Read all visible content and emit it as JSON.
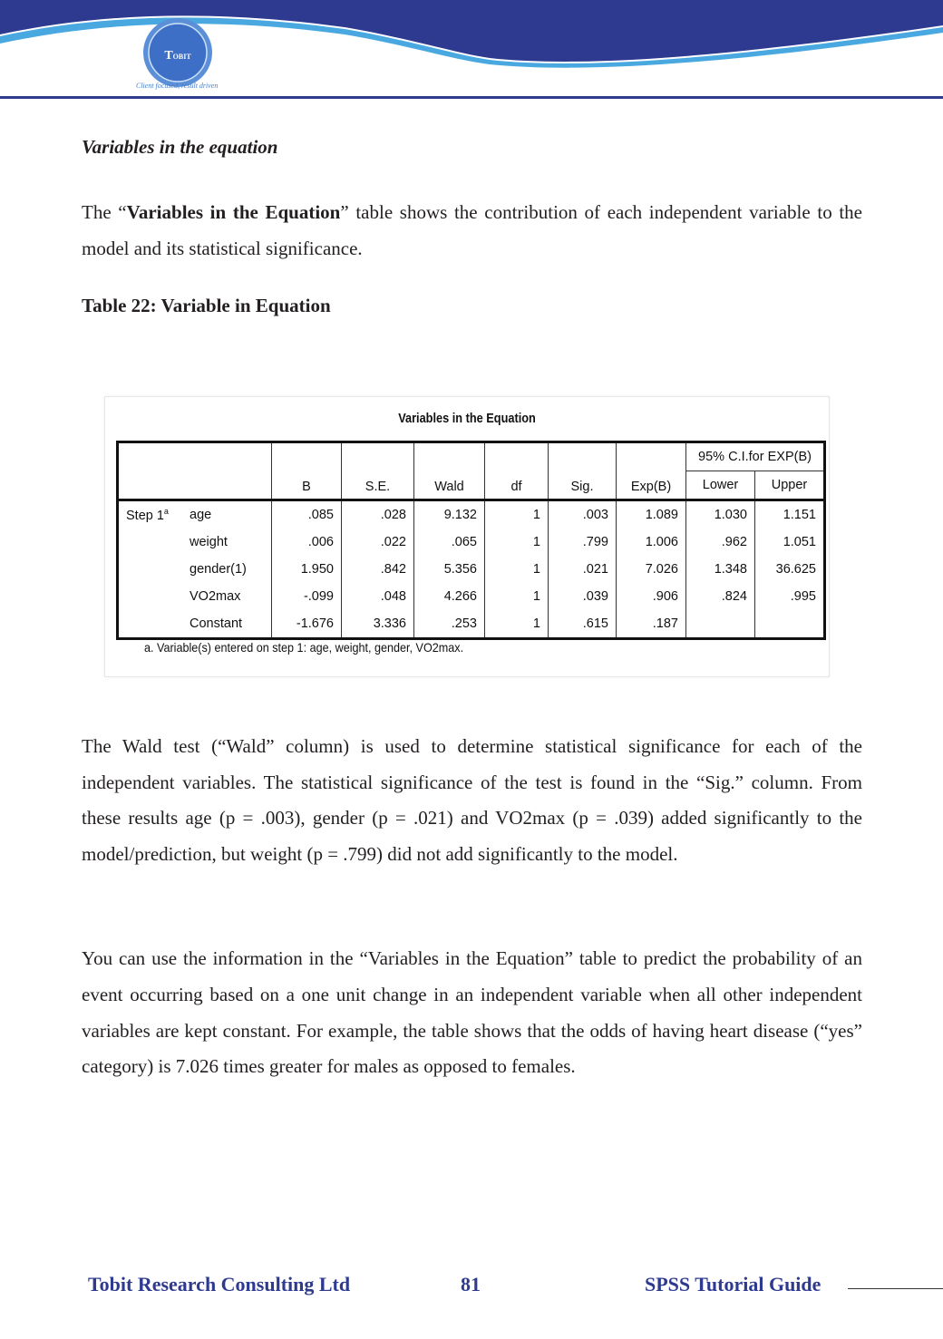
{
  "header": {
    "logo_text": "TOBIT",
    "tagline": "Client focused, result driven",
    "colors": {
      "dark": "#2e3a8f",
      "light": "#4aa8e0"
    }
  },
  "section_heading": "Variables in the equation",
  "para1": {
    "pre": "The “",
    "bold": "Variables in the Equation",
    "post": "” table shows the contribution of each independent variable to the model and its statistical significance."
  },
  "table_caption": "Table 22: Variable in Equation",
  "spss_table": {
    "title": "Variables in the Equation",
    "ci_header": "95% C.I.for EXP(B)",
    "columns": [
      "B",
      "S.E.",
      "Wald",
      "df",
      "Sig.",
      "Exp(B)",
      "Lower",
      "Upper"
    ],
    "step_label": "Step 1",
    "step_sup": "a",
    "rows": [
      {
        "name": "age",
        "values": [
          ".085",
          ".028",
          "9.132",
          "1",
          ".003",
          "1.089",
          "1.030",
          "1.151"
        ]
      },
      {
        "name": "weight",
        "values": [
          ".006",
          ".022",
          ".065",
          "1",
          ".799",
          "1.006",
          ".962",
          "1.051"
        ]
      },
      {
        "name": "gender(1)",
        "values": [
          "1.950",
          ".842",
          "5.356",
          "1",
          ".021",
          "7.026",
          "1.348",
          "36.625"
        ]
      },
      {
        "name": "VO2max",
        "values": [
          "-.099",
          ".048",
          "4.266",
          "1",
          ".039",
          ".906",
          ".824",
          ".995"
        ]
      },
      {
        "name": "Constant",
        "values": [
          "-1.676",
          "3.336",
          ".253",
          "1",
          ".615",
          ".187",
          "",
          ""
        ]
      }
    ],
    "footnote": "a. Variable(s) entered on step 1: age, weight, gender, VO2max."
  },
  "para2": "The Wald test (“Wald” column) is used to determine statistical significance for each of the independent variables. The statistical significance of the test is found in the “Sig.” column. From these results age (p = .003), gender (p = .021) and VO2max (p = .039) added significantly to the model/prediction, but weight (p = .799) did not add significantly to the model.",
  "para3": "You can use the information in the “Variables in the Equation” table to predict the probability of an event occurring based on a one unit change in an independent variable when all other independent variables are kept constant. For example, the table shows that the odds of having heart disease (“yes” category) is 7.026 times greater for males as opposed to females.",
  "footer": {
    "company": "Tobit Research Consulting Ltd",
    "page_number": "81",
    "guide": "SPSS Tutorial Guide"
  }
}
